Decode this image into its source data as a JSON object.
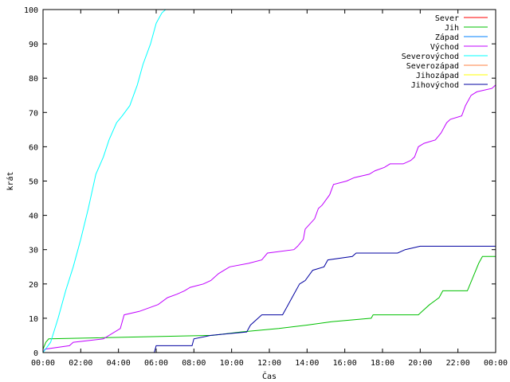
{
  "chart_data": {
    "type": "line",
    "title": "",
    "xlabel": "Čas",
    "ylabel": "krát",
    "xlim": [
      0,
      24
    ],
    "ylim": [
      0,
      100
    ],
    "x_ticks": [
      {
        "value": 0,
        "label": "00:00"
      },
      {
        "value": 2,
        "label": "02:00"
      },
      {
        "value": 4,
        "label": "04:00"
      },
      {
        "value": 6,
        "label": "06:00"
      },
      {
        "value": 8,
        "label": "08:00"
      },
      {
        "value": 10,
        "label": "10:00"
      },
      {
        "value": 12,
        "label": "12:00"
      },
      {
        "value": 14,
        "label": "14:00"
      },
      {
        "value": 16,
        "label": "16:00"
      },
      {
        "value": 18,
        "label": "18:00"
      },
      {
        "value": 20,
        "label": "20:00"
      },
      {
        "value": 22,
        "label": "22:00"
      },
      {
        "value": 24,
        "label": "00:00"
      }
    ],
    "y_ticks": [
      0,
      10,
      20,
      30,
      40,
      50,
      60,
      70,
      80,
      90,
      100
    ],
    "grid": false,
    "legend_position": "top-right",
    "series": [
      {
        "name": "Sever",
        "color": "#ff0000",
        "points": []
      },
      {
        "name": "Jih",
        "color": "#00c000",
        "points": [
          [
            0,
            1
          ],
          [
            0.15,
            3
          ],
          [
            0.3,
            4
          ],
          [
            9,
            5
          ],
          [
            10.5,
            6
          ],
          [
            12.5,
            7
          ],
          [
            14,
            8
          ],
          [
            15.3,
            9
          ],
          [
            17.4,
            10
          ],
          [
            17.5,
            11
          ],
          [
            19.9,
            11
          ],
          [
            20.1,
            12
          ],
          [
            20.5,
            14
          ],
          [
            21,
            16
          ],
          [
            21.2,
            18
          ],
          [
            22.5,
            18
          ],
          [
            22.8,
            22
          ],
          [
            23.1,
            26
          ],
          [
            23.3,
            28
          ],
          [
            24,
            28
          ]
        ]
      },
      {
        "name": "Západ",
        "color": "#0080ff",
        "points": []
      },
      {
        "name": "Východ",
        "color": "#c000ff",
        "points": [
          [
            0,
            0
          ],
          [
            0.1,
            1
          ],
          [
            1.4,
            2
          ],
          [
            1.6,
            3
          ],
          [
            3.2,
            4
          ],
          [
            4.1,
            7
          ],
          [
            4.3,
            11
          ],
          [
            5.1,
            12
          ],
          [
            6.1,
            14
          ],
          [
            6.6,
            16
          ],
          [
            7.1,
            17
          ],
          [
            7.5,
            18
          ],
          [
            7.8,
            19
          ],
          [
            8.5,
            20
          ],
          [
            8.9,
            21
          ],
          [
            9.3,
            23
          ],
          [
            9.6,
            24
          ],
          [
            9.9,
            25
          ],
          [
            10.9,
            26
          ],
          [
            11.6,
            27
          ],
          [
            11.9,
            29
          ],
          [
            13.3,
            30
          ],
          [
            13.5,
            31
          ],
          [
            13.8,
            33
          ],
          [
            13.9,
            36
          ],
          [
            14.4,
            39
          ],
          [
            14.6,
            42
          ],
          [
            14.8,
            43
          ],
          [
            15.2,
            46
          ],
          [
            15.4,
            49
          ],
          [
            16.1,
            50
          ],
          [
            16.5,
            51
          ],
          [
            17.3,
            52
          ],
          [
            17.6,
            53
          ],
          [
            18.1,
            54
          ],
          [
            18.4,
            55
          ],
          [
            19.1,
            55
          ],
          [
            19.5,
            56
          ],
          [
            19.7,
            57
          ],
          [
            19.9,
            60
          ],
          [
            20.2,
            61
          ],
          [
            20.8,
            62
          ],
          [
            21.1,
            64
          ],
          [
            21.4,
            67
          ],
          [
            21.6,
            68
          ],
          [
            22.2,
            69
          ],
          [
            22.4,
            72
          ],
          [
            22.7,
            75
          ],
          [
            23.0,
            76
          ],
          [
            23.8,
            77
          ],
          [
            24,
            78
          ]
        ]
      },
      {
        "name": "Severovýchod",
        "color": "#00ffff",
        "points": [
          [
            0,
            0
          ],
          [
            0.4,
            3
          ],
          [
            0.8,
            10
          ],
          [
            1.2,
            18
          ],
          [
            1.6,
            25
          ],
          [
            2.0,
            33
          ],
          [
            2.4,
            42
          ],
          [
            2.8,
            52
          ],
          [
            3.2,
            57
          ],
          [
            3.5,
            62
          ],
          [
            3.9,
            67
          ],
          [
            4.2,
            69
          ],
          [
            4.6,
            72
          ],
          [
            5.0,
            78
          ],
          [
            5.3,
            84
          ],
          [
            5.7,
            90
          ],
          [
            6.0,
            96
          ],
          [
            6.3,
            99
          ],
          [
            6.5,
            100
          ]
        ]
      },
      {
        "name": "Severozápad",
        "color": "#ff8040",
        "points": []
      },
      {
        "name": "Jihozápad",
        "color": "#ffff00",
        "points": []
      },
      {
        "name": "Jihovýchod",
        "color": "#0000a0",
        "points": [
          [
            0,
            0
          ],
          [
            5.9,
            0
          ],
          [
            6.0,
            2
          ],
          [
            7.9,
            2
          ],
          [
            8.0,
            4
          ],
          [
            8.9,
            5
          ],
          [
            10.8,
            6
          ],
          [
            11.0,
            8
          ],
          [
            11.4,
            10
          ],
          [
            11.6,
            11
          ],
          [
            12.7,
            11
          ],
          [
            13.0,
            14
          ],
          [
            13.3,
            17
          ],
          [
            13.6,
            20
          ],
          [
            13.9,
            21
          ],
          [
            14.3,
            24
          ],
          [
            14.9,
            25
          ],
          [
            15.1,
            27
          ],
          [
            16.4,
            28
          ],
          [
            16.6,
            29
          ],
          [
            18.8,
            29
          ],
          [
            19.2,
            30
          ],
          [
            20.0,
            31
          ],
          [
            24,
            31
          ]
        ]
      }
    ]
  }
}
